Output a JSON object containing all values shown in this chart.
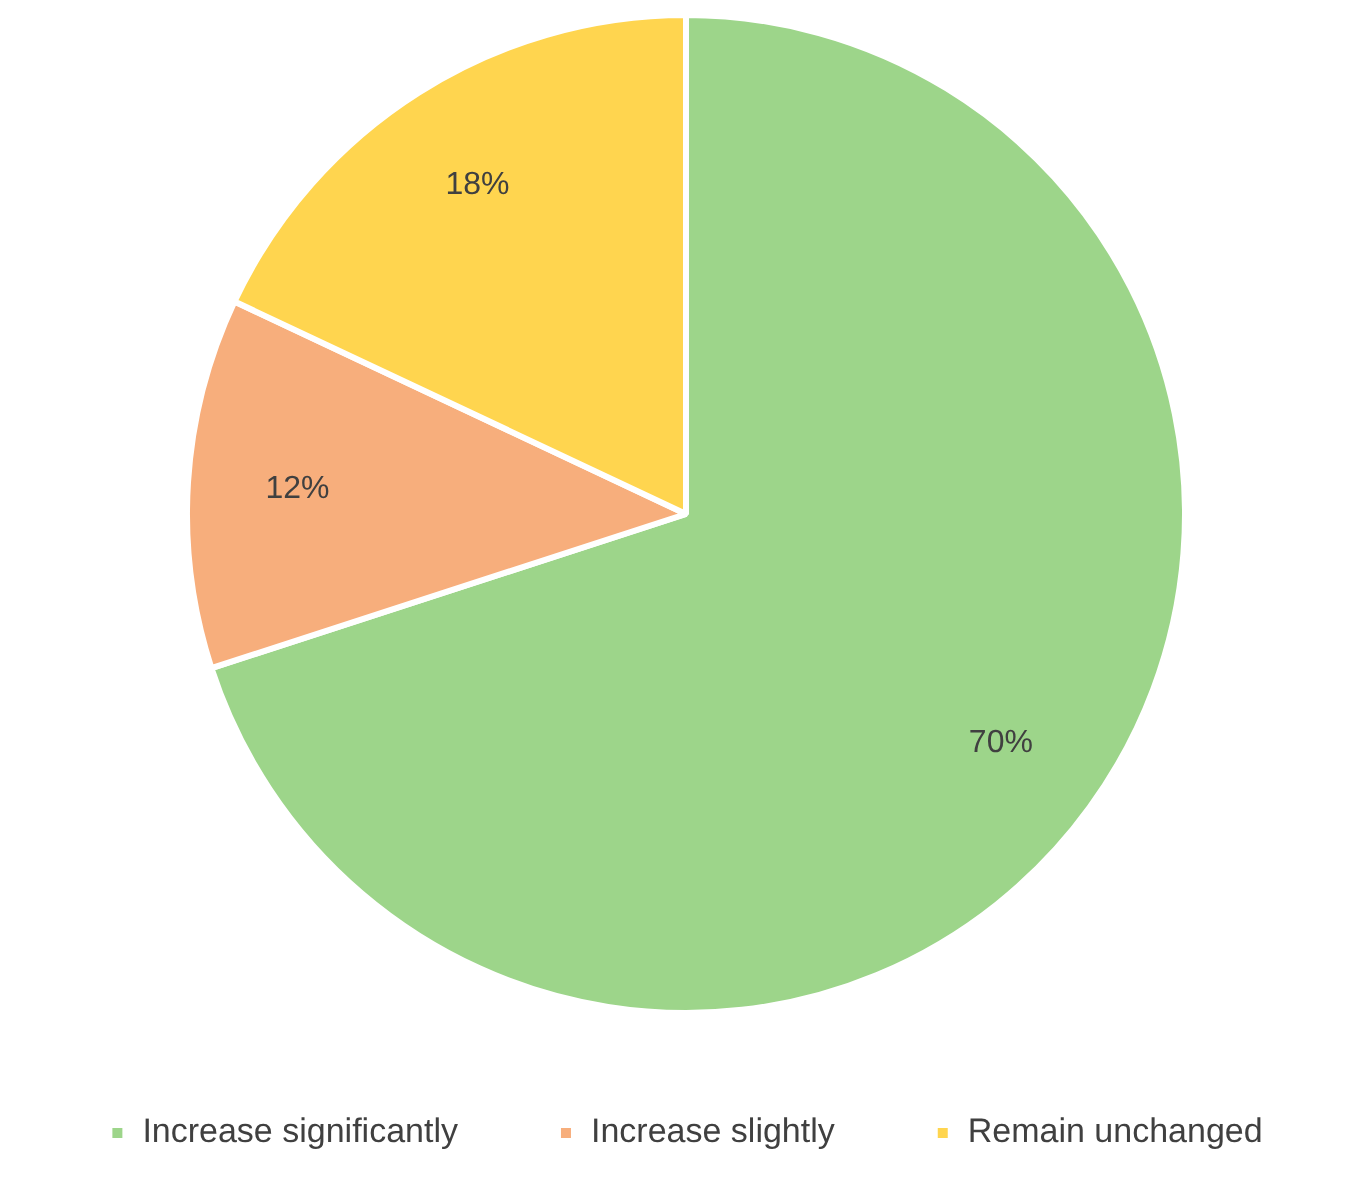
{
  "chart_data": {
    "type": "pie",
    "categories": [
      "Increase significantly",
      "Increase slightly",
      "Remain unchanged"
    ],
    "values": [
      70,
      12,
      18
    ],
    "colors": [
      "#9dd58a",
      "#f7ae7c",
      "#ffd54f"
    ],
    "value_labels": [
      "70%",
      "12%",
      "18%"
    ],
    "legend": "bottom"
  }
}
